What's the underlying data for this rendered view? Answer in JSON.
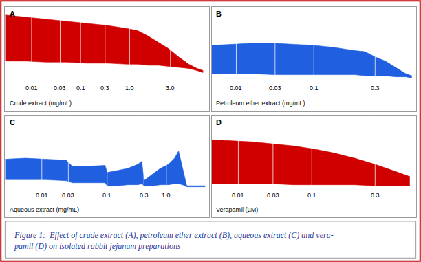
{
  "chart_data": [
    {
      "type": "area",
      "title": "A",
      "xlabel": "Crude extract (mg/mL)",
      "color": "#d00000",
      "x": [
        0,
        10,
        20,
        30,
        40,
        50,
        60,
        65,
        70,
        75,
        80,
        85,
        90,
        94,
        97
      ],
      "values": [
        92,
        90,
        88,
        86,
        84,
        82,
        79,
        77,
        72,
        66,
        60,
        52,
        45,
        41,
        39
      ],
      "lower": [
        48,
        48,
        47,
        47,
        46,
        46,
        45,
        45,
        44,
        44,
        43,
        42,
        41,
        39,
        37
      ],
      "xlim": [
        0,
        100
      ],
      "ylim": [
        0,
        100
      ],
      "tick_labels": false,
      "doses": [
        {
          "x": 13,
          "label": "0.01"
        },
        {
          "x": 27,
          "label": "0.03"
        },
        {
          "x": 37,
          "label": "0.1"
        },
        {
          "x": 49,
          "label": "0.3"
        },
        {
          "x": 61,
          "label": "1.0"
        },
        {
          "x": 81,
          "label": "3.0"
        }
      ]
    },
    {
      "type": "area",
      "title": "B",
      "xlabel": "Petroleum ether extract (mg/mL)",
      "color": "#1f5fe0",
      "x": [
        0,
        10,
        20,
        30,
        40,
        50,
        60,
        70,
        75,
        80,
        85,
        90,
        95,
        98
      ],
      "values": [
        63,
        64,
        65,
        65,
        64,
        63,
        61,
        58,
        57,
        52,
        48,
        42,
        36,
        34
      ],
      "lower": [
        36,
        36,
        36,
        35,
        35,
        35,
        35,
        35,
        34,
        34,
        34,
        33,
        33,
        32
      ],
      "xlim": [
        0,
        100
      ],
      "ylim": [
        0,
        100
      ],
      "tick_labels": false,
      "doses": [
        {
          "x": 12,
          "label": "0.01"
        },
        {
          "x": 31,
          "label": "0.03"
        },
        {
          "x": 50,
          "label": "0.1"
        },
        {
          "x": 80,
          "label": "0.3"
        }
      ]
    },
    {
      "type": "area",
      "title": "C",
      "xlabel": "Aqueous extract (mg/mL)",
      "color": "#1f5fe0",
      "x": [
        0,
        10,
        20,
        30,
        33,
        40,
        49,
        50,
        55,
        60,
        65,
        67,
        68,
        72,
        76,
        80,
        83,
        85,
        87,
        89,
        95,
        98
      ],
      "values": [
        57,
        58,
        57,
        56,
        50,
        50,
        51,
        44,
        46,
        48,
        52,
        55,
        36,
        42,
        48,
        52,
        58,
        65,
        48,
        31,
        31,
        31
      ],
      "lower": [
        37,
        37,
        37,
        36,
        34,
        34,
        34,
        31,
        31,
        32,
        32,
        33,
        31,
        31,
        32,
        32,
        33,
        33,
        32,
        30,
        30,
        30
      ],
      "xlim": [
        0,
        100
      ],
      "ylim": [
        0,
        100
      ],
      "tick_labels": false,
      "doses": [
        {
          "x": 18,
          "label": "0.01"
        },
        {
          "x": 31,
          "label": "0.03"
        },
        {
          "x": 50,
          "label": "0.1"
        },
        {
          "x": 68,
          "label": "0.3"
        },
        {
          "x": 79,
          "label": "1.0"
        }
      ]
    },
    {
      "type": "area",
      "title": "D",
      "xlabel": "Verapamil (µM)",
      "color": "#d00000",
      "x": [
        0,
        10,
        20,
        30,
        40,
        50,
        60,
        70,
        80,
        90,
        97
      ],
      "values": [
        76,
        75,
        74,
        72,
        70,
        67,
        63,
        58,
        52,
        45,
        40
      ],
      "lower": [
        33,
        33,
        33,
        33,
        32,
        32,
        32,
        32,
        31,
        31,
        31
      ],
      "xlim": [
        0,
        100
      ],
      "ylim": [
        0,
        100
      ],
      "tick_labels": false,
      "doses": [
        {
          "x": 13,
          "label": "0.01"
        },
        {
          "x": 30,
          "label": "0.03"
        },
        {
          "x": 49,
          "label": "0.1"
        },
        {
          "x": 80,
          "label": "0.3"
        }
      ]
    }
  ],
  "caption": [
    "Figure 1:  Effect of crude extract (A), petroleum ether extract (B), aqueous extract (C) and vera-",
    "pamil (D) on isolated rabbit jejunum preparations"
  ]
}
